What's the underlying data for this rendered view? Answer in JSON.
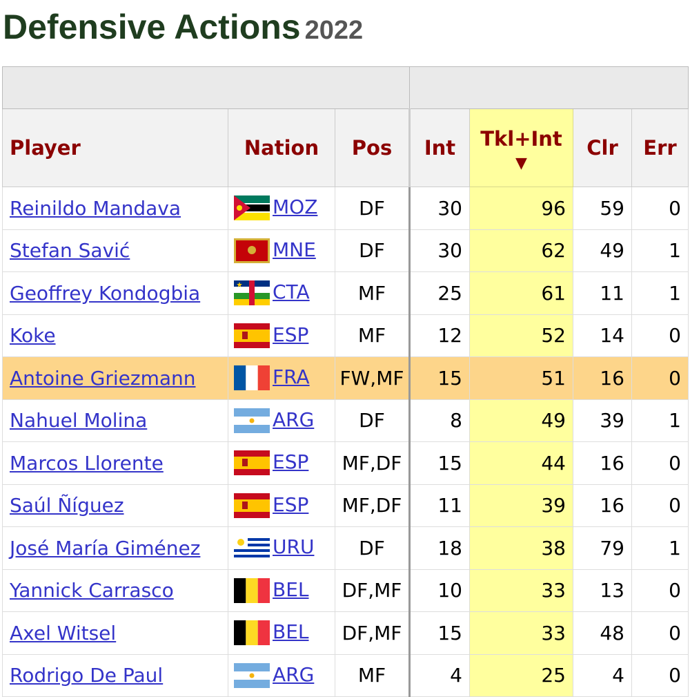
{
  "header": {
    "title": "Defensive Actions",
    "year": "2022"
  },
  "table": {
    "columns": [
      "Player",
      "Nation",
      "Pos",
      "Int",
      "Tkl+Int",
      "Clr",
      "Err"
    ],
    "rows": [
      [
        "Reinildo Mandava",
        "MOZ",
        "DF",
        30,
        96,
        59,
        0
      ],
      [
        "Stefan Savić",
        "MNE",
        "DF",
        30,
        62,
        49,
        1
      ],
      [
        "Geoffrey Kondogbia",
        "CTA",
        "MF",
        25,
        61,
        11,
        1
      ],
      [
        "Koke",
        "ESP",
        "MF",
        12,
        52,
        14,
        0
      ],
      [
        "Antoine Griezmann",
        "FRA",
        "FW,MF",
        15,
        51,
        16,
        0
      ],
      [
        "Nahuel Molina",
        "ARG",
        "DF",
        8,
        49,
        39,
        1
      ],
      [
        "Marcos Llorente",
        "ESP",
        "MF,DF",
        15,
        44,
        16,
        0
      ],
      [
        "Saúl Ñíguez",
        "ESP",
        "MF,DF",
        11,
        39,
        16,
        0
      ],
      [
        "José María Giménez",
        "URU",
        "DF",
        18,
        38,
        79,
        1
      ],
      [
        "Yannick Carrasco",
        "BEL",
        "DF,MF",
        10,
        33,
        13,
        0
      ],
      [
        "Axel Witsel",
        "BEL",
        "DF,MF",
        15,
        33,
        48,
        0
      ],
      [
        "Rodrigo De Paul",
        "ARG",
        "MF",
        4,
        25,
        4,
        0
      ]
    ]
  }
}
